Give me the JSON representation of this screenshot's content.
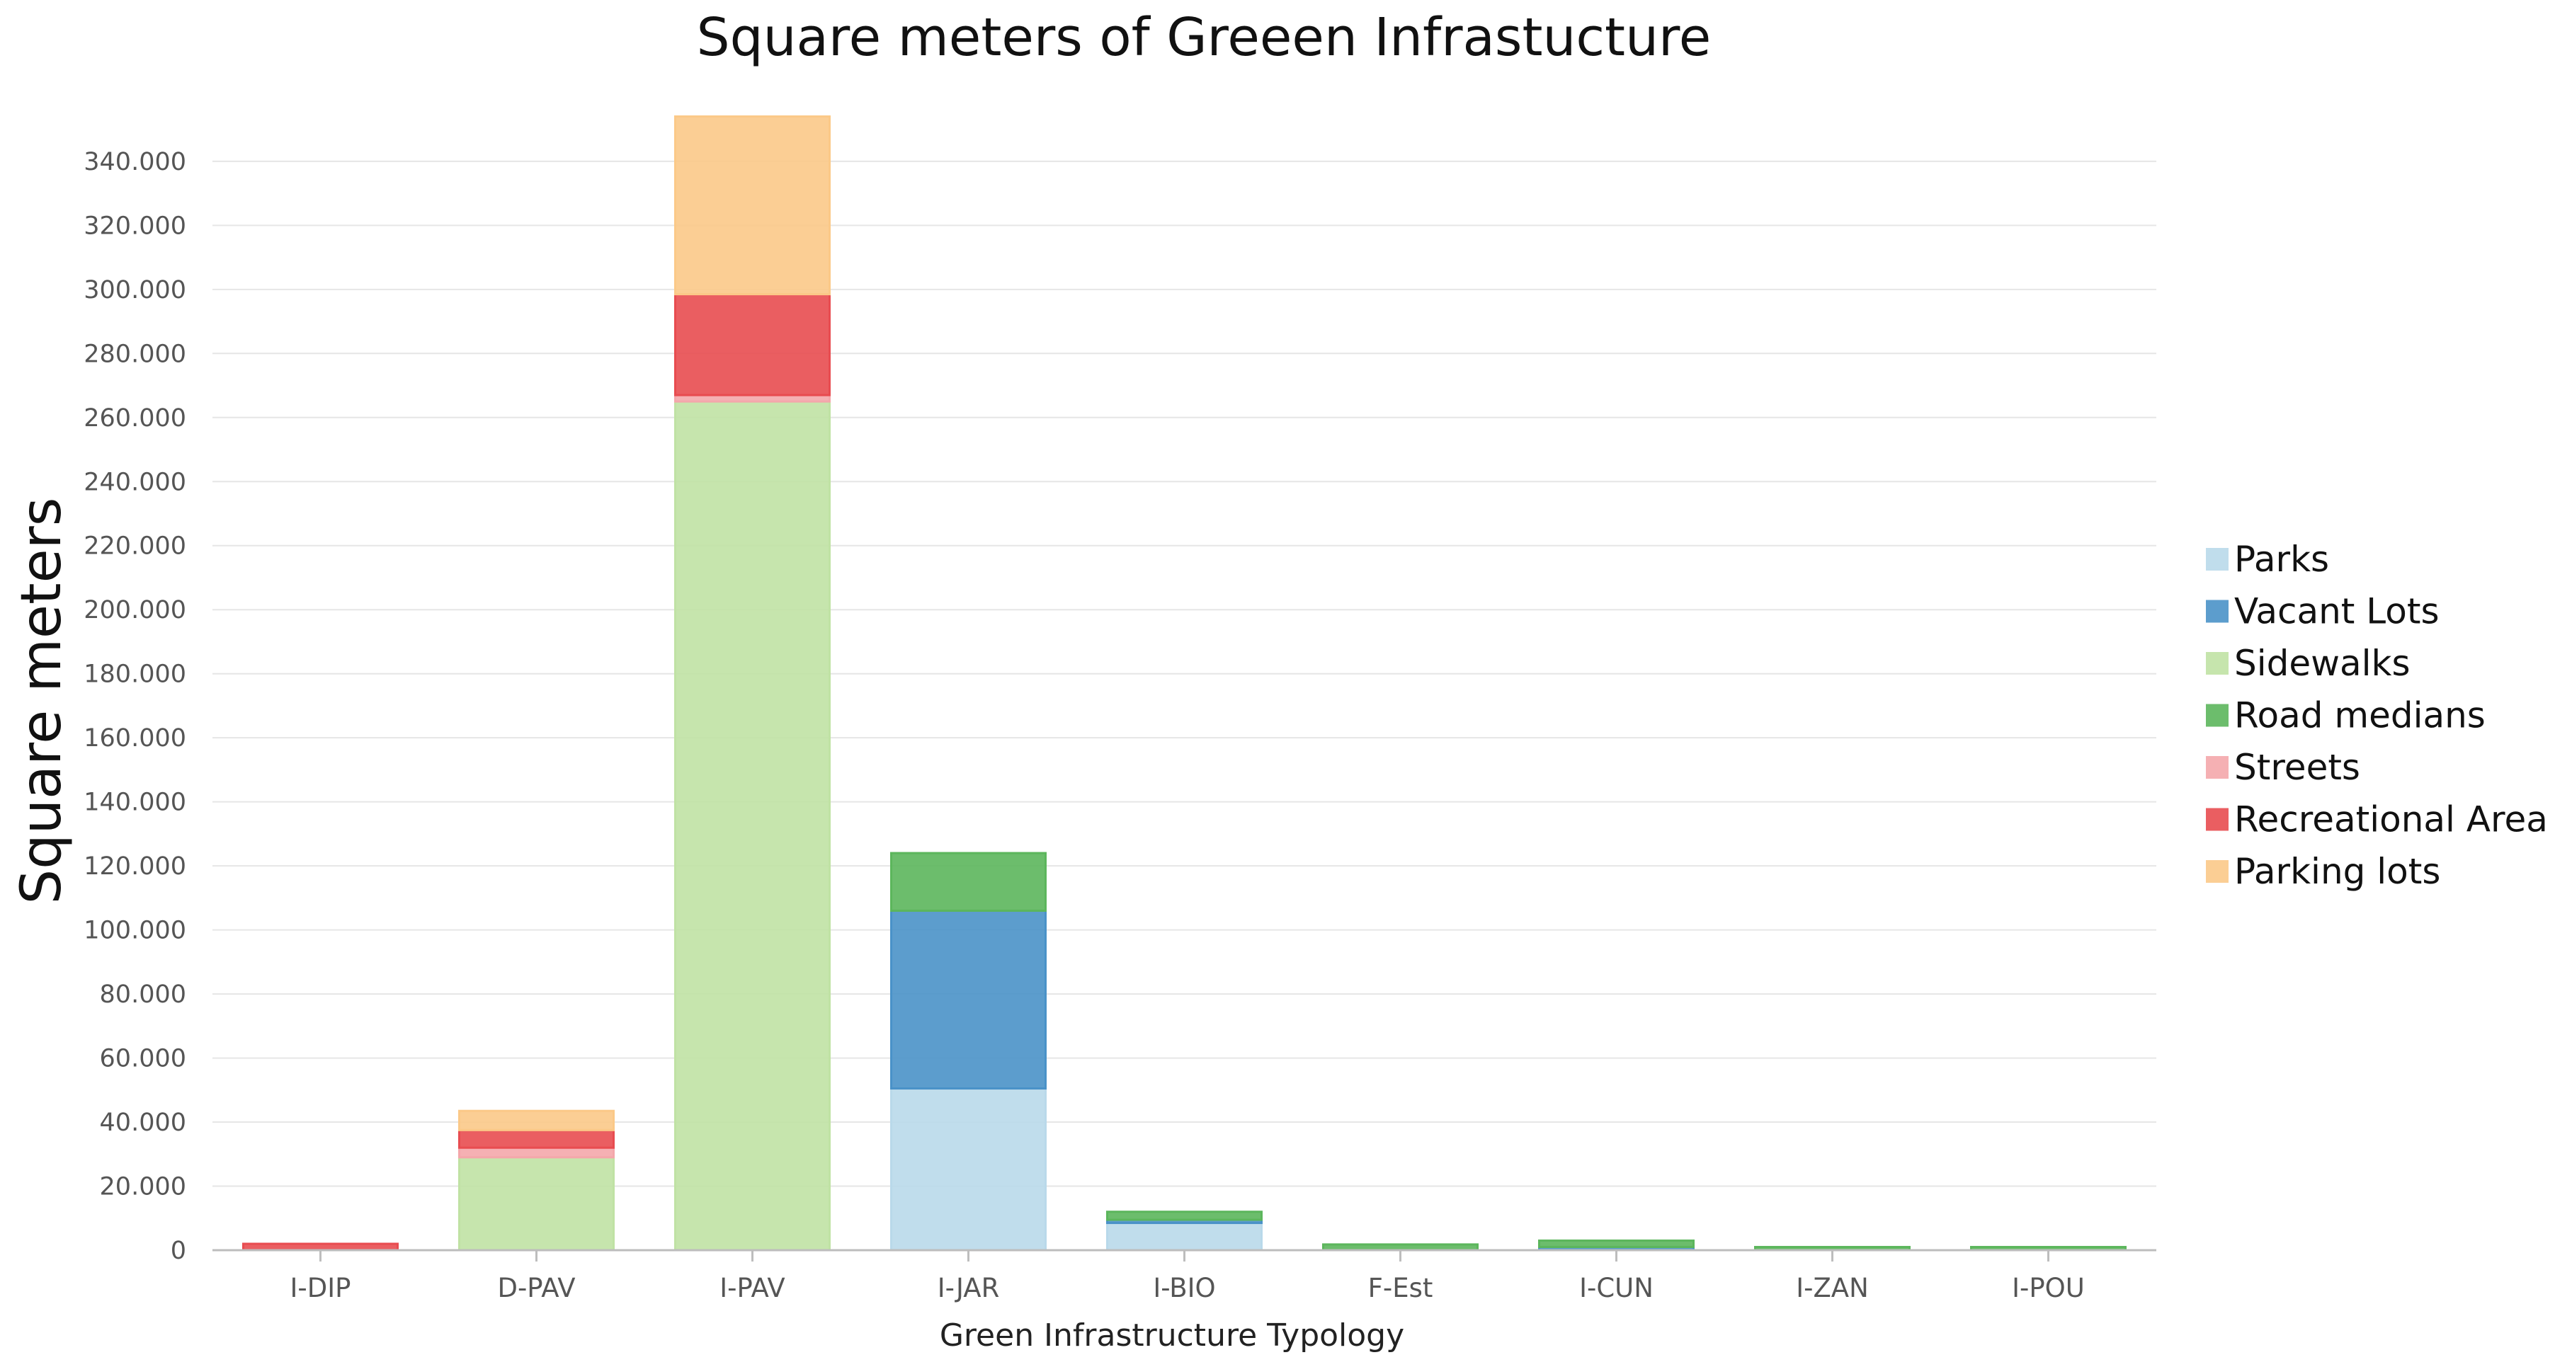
{
  "chart_data": {
    "type": "bar",
    "stacked": true,
    "title": "Square meters of Greeen Infrastucture",
    "xlabel": "Green Infrastructure Typology",
    "ylabel": "Square meters",
    "ylim": [
      0,
      355000
    ],
    "yticks": [
      0,
      20000,
      40000,
      60000,
      80000,
      100000,
      120000,
      140000,
      160000,
      180000,
      200000,
      220000,
      240000,
      260000,
      280000,
      300000,
      320000,
      340000
    ],
    "ytick_labels": [
      "0",
      "20.000",
      "40.000",
      "60.000",
      "80.000",
      "100.000",
      "120.000",
      "140.000",
      "160.000",
      "180.000",
      "200.000",
      "220.000",
      "240.000",
      "260.000",
      "280.000",
      "300.000",
      "320.000",
      "340.000"
    ],
    "categories": [
      "I-DIP",
      "D-PAV",
      "I-PAV",
      "I-JAR",
      "I-BIO",
      "F-Est",
      "I-CUN",
      "I-ZAN",
      "I-POU"
    ],
    "grid": true,
    "legend_position": "right",
    "series": [
      {
        "name": "Parks",
        "color": "#b9d9ea",
        "values": [
          0,
          0,
          0,
          50500,
          8500,
          0,
          0,
          0,
          0
        ]
      },
      {
        "name": "Vacant Lots",
        "color": "#4a92c8",
        "values": [
          0,
          0,
          0,
          55500,
          1000,
          0,
          1000,
          0,
          0
        ]
      },
      {
        "name": "Sidewalks",
        "color": "#c0e2a4",
        "values": [
          0,
          29000,
          265000,
          0,
          0,
          0,
          0,
          0,
          0
        ]
      },
      {
        "name": "Road medians",
        "color": "#5cb65c",
        "values": [
          0,
          0,
          0,
          18000,
          2500,
          1800,
          2000,
          1000,
          1000
        ]
      },
      {
        "name": "Streets",
        "color": "#f4a7ab",
        "values": [
          0,
          3000,
          2000,
          0,
          0,
          0,
          0,
          0,
          0
        ]
      },
      {
        "name": "Recreational Area",
        "color": "#e84c50",
        "values": [
          2000,
          5500,
          31500,
          0,
          0,
          0,
          0,
          0,
          0
        ]
      },
      {
        "name": "Parking lots",
        "color": "#fbc988",
        "values": [
          0,
          6000,
          55500,
          0,
          0,
          0,
          0,
          0,
          0
        ]
      }
    ]
  }
}
